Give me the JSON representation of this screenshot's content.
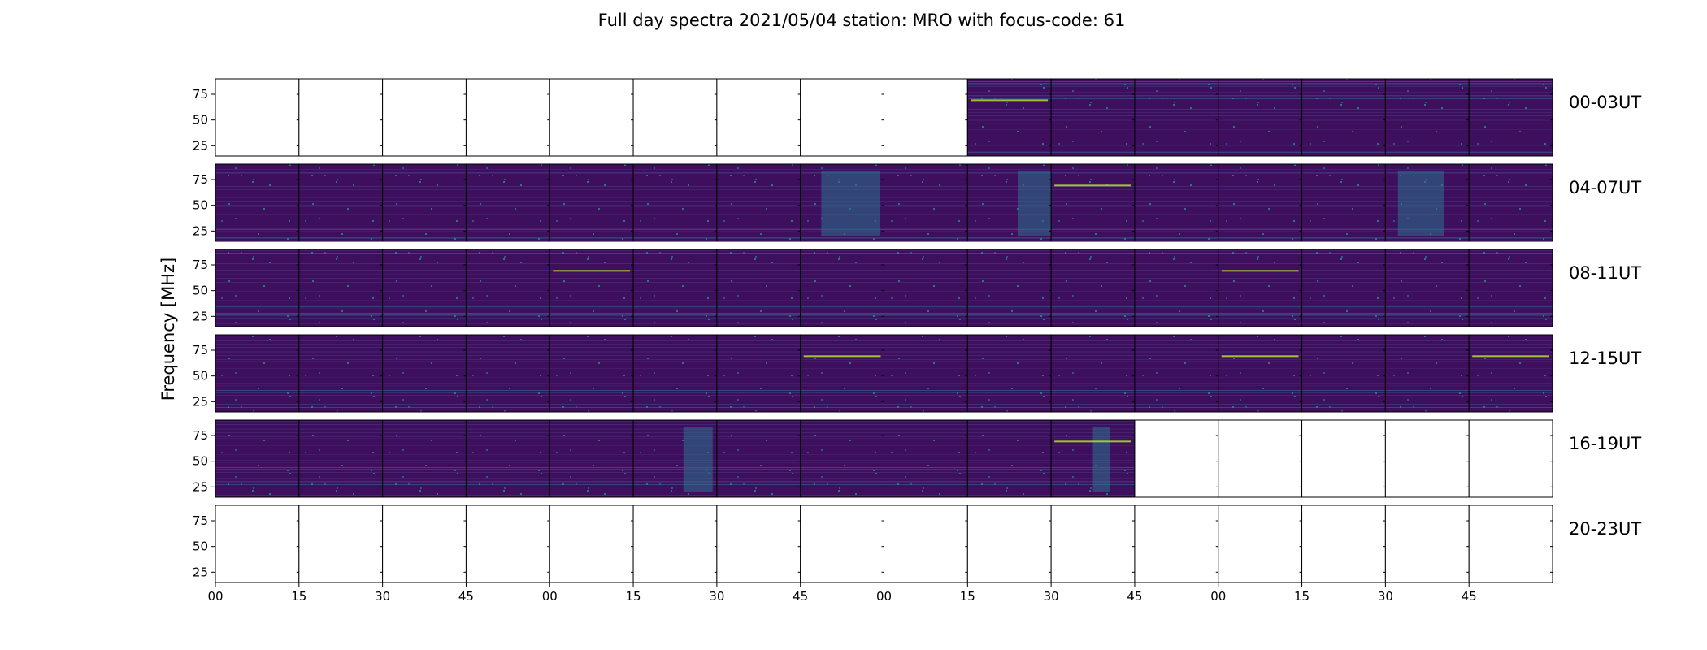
{
  "figure": {
    "title": "Full day spectra 2021/05/04 station: MRO with focus-code: 61",
    "ylabel": "Frequency [MHz]"
  },
  "colors": {
    "background_dark": "#3d0f5c",
    "colormap": [
      "#440154",
      "#3b528b",
      "#21918c",
      "#5ec962",
      "#fde725"
    ]
  },
  "chart_data": {
    "type": "heatmap",
    "title": "Full day spectra 2021/05/04 station: MRO with focus-code: 61",
    "ylabel": "Frequency [MHz]",
    "ylim": [
      15,
      90
    ],
    "yticks": [
      25,
      50,
      75
    ],
    "xticks": [
      "00",
      "15",
      "30",
      "45",
      "00",
      "15",
      "30",
      "45",
      "00",
      "15",
      "30",
      "45",
      "00",
      "15",
      "30",
      "45"
    ],
    "rows": [
      {
        "label": "00-03UT",
        "panels": [
          0,
          0,
          0,
          0,
          0,
          0,
          0,
          0,
          0,
          1,
          1,
          1,
          1,
          1,
          1,
          1
        ]
      },
      {
        "label": "04-07UT",
        "panels": [
          1,
          1,
          1,
          1,
          1,
          1,
          1,
          1,
          1,
          1,
          1,
          1,
          1,
          1,
          1,
          1
        ]
      },
      {
        "label": "08-11UT",
        "panels": [
          1,
          1,
          1,
          1,
          1,
          1,
          1,
          1,
          1,
          1,
          1,
          1,
          1,
          1,
          1,
          1
        ]
      },
      {
        "label": "12-15UT",
        "panels": [
          1,
          1,
          1,
          1,
          1,
          1,
          1,
          1,
          1,
          1,
          1,
          1,
          1,
          1,
          1,
          1
        ]
      },
      {
        "label": "16-19UT",
        "panels": [
          1,
          1,
          1,
          1,
          1,
          1,
          1,
          1,
          1,
          1,
          1,
          0,
          0,
          0,
          0,
          0
        ]
      },
      {
        "label": "20-23UT",
        "panels": [
          0,
          0,
          0,
          0,
          0,
          0,
          0,
          0,
          0,
          0,
          0,
          0,
          0,
          0,
          0,
          0
        ]
      }
    ]
  }
}
